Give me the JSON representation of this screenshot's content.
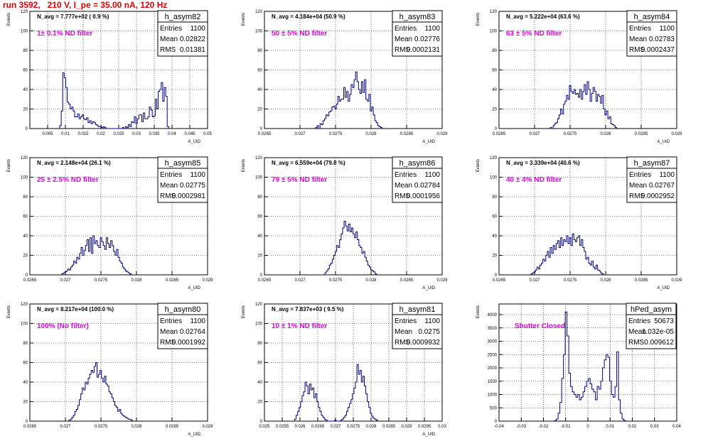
{
  "page": {
    "title": "run 3592,   210 V, I_pe = 35.00 nA, 120 Hz"
  },
  "chart_data": [
    {
      "type": "histogram",
      "title": "h_asym82",
      "n_avg": "N_avg = 7.777e+02 ( 0.9 %)",
      "filter_label": "1± 0.1% ND filter",
      "stats": {
        "entries": "1100",
        "mean": "0.02822",
        "rms": "0.01381"
      },
      "xlabel": "A_UID",
      "ylabel": "Events",
      "xlim": [
        0.0,
        0.05
      ],
      "ylim": [
        0,
        120
      ],
      "xticks": [
        {
          "v": 0.005,
          "label": "0.005"
        },
        {
          "v": 0.01,
          "label": "0.01"
        },
        {
          "v": 0.015,
          "label": "0.015"
        },
        {
          "v": 0.02,
          "label": "0.02"
        },
        {
          "v": 0.025,
          "label": "0.025"
        },
        {
          "v": 0.03,
          "label": "0.03"
        },
        {
          "v": 0.035,
          "label": "0.035"
        },
        {
          "v": 0.04,
          "label": "0.04"
        },
        {
          "v": 0.045,
          "label": "0.045"
        },
        {
          "v": 0.05,
          "label": "0.05"
        }
      ],
      "yticks": [
        0,
        20,
        40,
        60,
        80,
        100,
        120
      ],
      "bins_start": 0.0084,
      "bin_width": 0.00042,
      "counts": [
        3,
        18,
        57,
        52,
        42,
        27,
        25,
        20,
        22,
        18,
        12,
        12,
        15,
        10,
        12,
        14,
        10,
        9,
        11,
        6,
        8,
        5,
        7,
        6,
        4,
        3,
        2,
        2,
        1,
        2,
        1,
        0,
        0,
        0,
        0,
        0,
        0,
        0,
        0,
        0,
        0,
        0,
        1,
        0,
        2,
        1,
        4,
        2,
        7,
        6,
        12,
        5,
        10,
        14,
        14,
        7,
        16,
        10,
        10,
        12,
        22,
        19,
        12,
        13,
        30,
        20,
        38,
        40,
        47,
        28,
        42,
        33,
        2,
        0,
        0
      ]
    },
    {
      "type": "histogram",
      "title": "h_asym83",
      "n_avg": "N_avg = 4.184e+04 (50.9 %)",
      "filter_label": "50 ± 5% ND filter",
      "stats": {
        "entries": "1100",
        "mean": "0.02776",
        "rms": "0.0002131"
      },
      "xlabel": "A_UID",
      "ylabel": "Events",
      "xlim": [
        0.0265,
        0.029
      ],
      "ylim": [
        0,
        120
      ],
      "xticks": [
        {
          "v": 0.0265,
          "label": "0.0265"
        },
        {
          "v": 0.027,
          "label": "0.027"
        },
        {
          "v": 0.0275,
          "label": "0.0275"
        },
        {
          "v": 0.028,
          "label": "0.028"
        },
        {
          "v": 0.0285,
          "label": "0.0285"
        },
        {
          "v": 0.029,
          "label": "0.029"
        }
      ],
      "yticks": [
        0,
        20,
        40,
        60,
        80,
        100,
        120
      ],
      "bins_start": 0.02722,
      "bin_width": 2.08e-05,
      "counts": [
        1,
        3,
        0,
        5,
        4,
        8,
        10,
        14,
        13,
        17,
        18,
        22,
        23,
        20,
        25,
        33,
        28,
        30,
        30,
        42,
        32,
        38,
        28,
        35,
        45,
        42,
        50,
        58,
        48,
        40,
        36,
        48,
        37,
        50,
        30,
        28,
        35,
        18,
        22,
        14,
        8,
        6,
        3,
        2,
        1
      ]
    },
    {
      "type": "histogram",
      "title": "h_asym84",
      "n_avg": "N_avg = 5.222e+04 (63.6 %)",
      "filter_label": "63 ± 5% ND filter",
      "stats": {
        "entries": "1100",
        "mean": "0.02783",
        "rms": "0.0002437"
      },
      "xlabel": "A_UID",
      "ylabel": "Events",
      "xlim": [
        0.0265,
        0.029
      ],
      "ylim": [
        0,
        120
      ],
      "xticks": [
        {
          "v": 0.0265,
          "label": "0.0265"
        },
        {
          "v": 0.027,
          "label": "0.027"
        },
        {
          "v": 0.0275,
          "label": "0.0275"
        },
        {
          "v": 0.028,
          "label": "0.028"
        },
        {
          "v": 0.0285,
          "label": "0.0285"
        },
        {
          "v": 0.029,
          "label": "0.029"
        }
      ],
      "yticks": [
        0,
        20,
        40,
        60,
        80,
        100,
        120
      ],
      "bins_start": 0.02722,
      "bin_width": 2.08e-05,
      "counts": [
        1,
        0,
        3,
        5,
        6,
        10,
        14,
        20,
        15,
        25,
        28,
        34,
        30,
        44,
        38,
        36,
        40,
        35,
        36,
        32,
        40,
        30,
        38,
        45,
        35,
        48,
        40,
        28,
        36,
        42,
        38,
        28,
        35,
        33,
        26,
        34,
        20,
        14,
        18,
        10,
        12,
        5,
        4,
        3,
        1
      ]
    },
    {
      "type": "histogram",
      "title": "h_asym85",
      "n_avg": "N_avg = 2.148e+04 (26.1 %)",
      "filter_label": "25 ± 2.5% ND filter",
      "stats": {
        "entries": "1100",
        "mean": "0.02775",
        "rms": "0.0002981"
      },
      "xlabel": "A_UID",
      "ylabel": "Events",
      "xlim": [
        0.0265,
        0.029
      ],
      "ylim": [
        0,
        120
      ],
      "xticks": [
        {
          "v": 0.0265,
          "label": "0.0265"
        },
        {
          "v": 0.027,
          "label": "0.027"
        },
        {
          "v": 0.0275,
          "label": "0.0275"
        },
        {
          "v": 0.028,
          "label": "0.028"
        },
        {
          "v": 0.0285,
          "label": "0.0285"
        },
        {
          "v": 0.029,
          "label": "0.029"
        }
      ],
      "yticks": [
        0,
        20,
        40,
        60,
        80,
        100,
        120
      ],
      "bins_start": 0.02695,
      "bin_width": 2.08e-05,
      "counts": [
        1,
        2,
        3,
        4,
        6,
        5,
        8,
        10,
        14,
        12,
        18,
        16,
        22,
        28,
        20,
        25,
        30,
        36,
        24,
        38,
        22,
        40,
        32,
        35,
        30,
        28,
        38,
        34,
        30,
        26,
        38,
        32,
        28,
        35,
        30,
        24,
        20,
        26,
        18,
        14,
        12,
        8,
        6,
        4,
        3,
        2,
        1
      ]
    },
    {
      "type": "histogram",
      "title": "h_asym86",
      "n_avg": "N_avg = 6.559e+04 (79.8 %)",
      "filter_label": "79 ± 5% ND filter",
      "stats": {
        "entries": "1100",
        "mean": "0.02784",
        "rms": "0.0001956"
      },
      "xlabel": "A_UID",
      "ylabel": "Events",
      "xlim": [
        0.0265,
        0.029
      ],
      "ylim": [
        0,
        120
      ],
      "xticks": [
        {
          "v": 0.0265,
          "label": "0.0265"
        },
        {
          "v": 0.027,
          "label": "0.027"
        },
        {
          "v": 0.0275,
          "label": "0.0275"
        },
        {
          "v": 0.028,
          "label": "0.028"
        },
        {
          "v": 0.0285,
          "label": "0.0285"
        },
        {
          "v": 0.029,
          "label": "0.029"
        }
      ],
      "yticks": [
        0,
        20,
        40,
        60,
        80,
        100,
        120
      ],
      "bins_start": 0.02735,
      "bin_width": 2.08e-05,
      "counts": [
        2,
        4,
        6,
        10,
        12,
        16,
        20,
        24,
        30,
        28,
        36,
        42,
        48,
        55,
        50,
        45,
        52,
        44,
        48,
        42,
        38,
        44,
        36,
        30,
        28,
        22,
        24,
        18,
        14,
        10,
        8,
        5,
        4,
        3,
        1
      ]
    },
    {
      "type": "histogram",
      "title": "h_asym87",
      "n_avg": "N_avg = 3.339e+04 (40.6 %)",
      "filter_label": "40 ± 4% ND filter",
      "stats": {
        "entries": "1100",
        "mean": "0.02767",
        "rms": "0.0002952"
      },
      "xlabel": "A_UID",
      "ylabel": "Events",
      "xlim": [
        0.0265,
        0.029
      ],
      "ylim": [
        0,
        120
      ],
      "xticks": [
        {
          "v": 0.0265,
          "label": "0.0265"
        },
        {
          "v": 0.027,
          "label": "0.027"
        },
        {
          "v": 0.0275,
          "label": "0.0275"
        },
        {
          "v": 0.028,
          "label": "0.028"
        },
        {
          "v": 0.0285,
          "label": "0.0285"
        },
        {
          "v": 0.029,
          "label": "0.029"
        }
      ],
      "yticks": [
        0,
        20,
        40,
        60,
        80,
        100,
        120
      ],
      "bins_start": 0.02695,
      "bin_width": 2.08e-05,
      "counts": [
        1,
        2,
        3,
        5,
        8,
        6,
        10,
        12,
        16,
        14,
        20,
        24,
        18,
        28,
        22,
        30,
        26,
        32,
        35,
        28,
        38,
        30,
        36,
        34,
        40,
        32,
        38,
        30,
        42,
        36,
        34,
        38,
        40,
        30,
        36,
        28,
        24,
        16,
        18,
        12,
        10,
        14,
        8,
        6,
        10,
        5,
        4,
        2,
        1
      ]
    },
    {
      "type": "histogram",
      "title": "h_asym80",
      "n_avg": "N_avg = 8.217e+04 (100.0 %)",
      "filter_label": "100% (No filter)",
      "stats": {
        "entries": "1100",
        "mean": "0.02764",
        "rms": "0.0001992"
      },
      "xlabel": "A_UID",
      "ylabel": "Events",
      "xlim": [
        0.0265,
        0.029
      ],
      "ylim": [
        0,
        120
      ],
      "xticks": [
        {
          "v": 0.0265,
          "label": "0.0265"
        },
        {
          "v": 0.027,
          "label": "0.027"
        },
        {
          "v": 0.0275,
          "label": "0.0275"
        },
        {
          "v": 0.028,
          "label": "0.028"
        },
        {
          "v": 0.0285,
          "label": "0.0285"
        },
        {
          "v": 0.029,
          "label": "0.029"
        }
      ],
      "yticks": [
        0,
        20,
        40,
        60,
        80,
        100,
        120
      ],
      "bins_start": 0.02705,
      "bin_width": 2.08e-05,
      "counts": [
        1,
        2,
        4,
        6,
        10,
        12,
        16,
        22,
        28,
        34,
        32,
        40,
        38,
        44,
        48,
        52,
        50,
        56,
        60,
        45,
        48,
        52,
        44,
        40,
        46,
        38,
        36,
        30,
        28,
        24,
        20,
        16,
        14,
        10,
        12,
        8,
        6,
        5,
        4,
        3,
        2,
        2,
        1
      ]
    },
    {
      "type": "histogram",
      "title": "h_asym81",
      "n_avg": "N_avg = 7.837e+03 ( 9.5 %)",
      "filter_label": "10 ± 1% ND filter",
      "stats": {
        "entries": "1100",
        "mean": "0.0275",
        "rms": "0.0009932"
      },
      "xlabel": "A_UID",
      "ylabel": "Events",
      "xlim": [
        0.025,
        0.03
      ],
      "ylim": [
        0,
        120
      ],
      "xticks": [
        {
          "v": 0.025,
          "label": "0.025"
        },
        {
          "v": 0.0255,
          "label": "0.0255"
        },
        {
          "v": 0.026,
          "label": "0.026"
        },
        {
          "v": 0.0265,
          "label": "0.0265"
        },
        {
          "v": 0.027,
          "label": "0.027"
        },
        {
          "v": 0.0275,
          "label": "0.0275"
        },
        {
          "v": 0.028,
          "label": "0.028"
        },
        {
          "v": 0.0285,
          "label": "0.0285"
        },
        {
          "v": 0.029,
          "label": "0.029"
        },
        {
          "v": 0.0295,
          "label": "0.0295"
        },
        {
          "v": 0.03,
          "label": "0.03"
        }
      ],
      "yticks": [
        0,
        20,
        40,
        60,
        80,
        100,
        120
      ],
      "bins_start": 0.02585,
      "bin_width": 4.17e-05,
      "counts": [
        2,
        6,
        10,
        14,
        20,
        26,
        30,
        40,
        36,
        28,
        38,
        32,
        34,
        24,
        28,
        20,
        14,
        10,
        6,
        4,
        2,
        1,
        0,
        0,
        0,
        0,
        0,
        1,
        0,
        0,
        0,
        1,
        2,
        4,
        6,
        10,
        14,
        18,
        22,
        28,
        34,
        40,
        58,
        48,
        52,
        40,
        46,
        36,
        28,
        20,
        14,
        8,
        5,
        3,
        2,
        1
      ]
    },
    {
      "type": "histogram",
      "title": "hPed_asym",
      "n_avg": "",
      "filter_label": "Shutter Closed",
      "stats": {
        "entries": "50673",
        "mean": "1.032e-05",
        "rms": "0.009612"
      },
      "xlabel": "",
      "ylabel": "Events",
      "xlim": [
        -0.04,
        0.04
      ],
      "ylim": [
        0,
        4400
      ],
      "xticks": [
        {
          "v": -0.04,
          "label": "-0.04"
        },
        {
          "v": -0.03,
          "label": "-0.03"
        },
        {
          "v": -0.02,
          "label": "-0.02"
        },
        {
          "v": -0.01,
          "label": "-0.01"
        },
        {
          "v": 0,
          "label": "0"
        },
        {
          "v": 0.01,
          "label": "0.01"
        },
        {
          "v": 0.02,
          "label": "0.02"
        },
        {
          "v": 0.03,
          "label": "0.03"
        },
        {
          "v": 0.04,
          "label": "0.04"
        }
      ],
      "yticks": [
        0,
        500,
        1000,
        1500,
        2000,
        2500,
        3000,
        3500,
        4000
      ],
      "bins_start": -0.015,
      "bin_width": 0.0008,
      "counts": [
        20,
        80,
        300,
        700,
        1600,
        2500,
        4100,
        3200,
        1800,
        1300,
        1100,
        1000,
        900,
        1000,
        800,
        900,
        1100,
        1300,
        1500,
        1600,
        1400,
        1200,
        1100,
        800,
        1300,
        1200,
        1500,
        2000,
        2300,
        2500,
        2400,
        1500,
        1000,
        900,
        1300,
        2600,
        800,
        300,
        80,
        20
      ]
    }
  ]
}
